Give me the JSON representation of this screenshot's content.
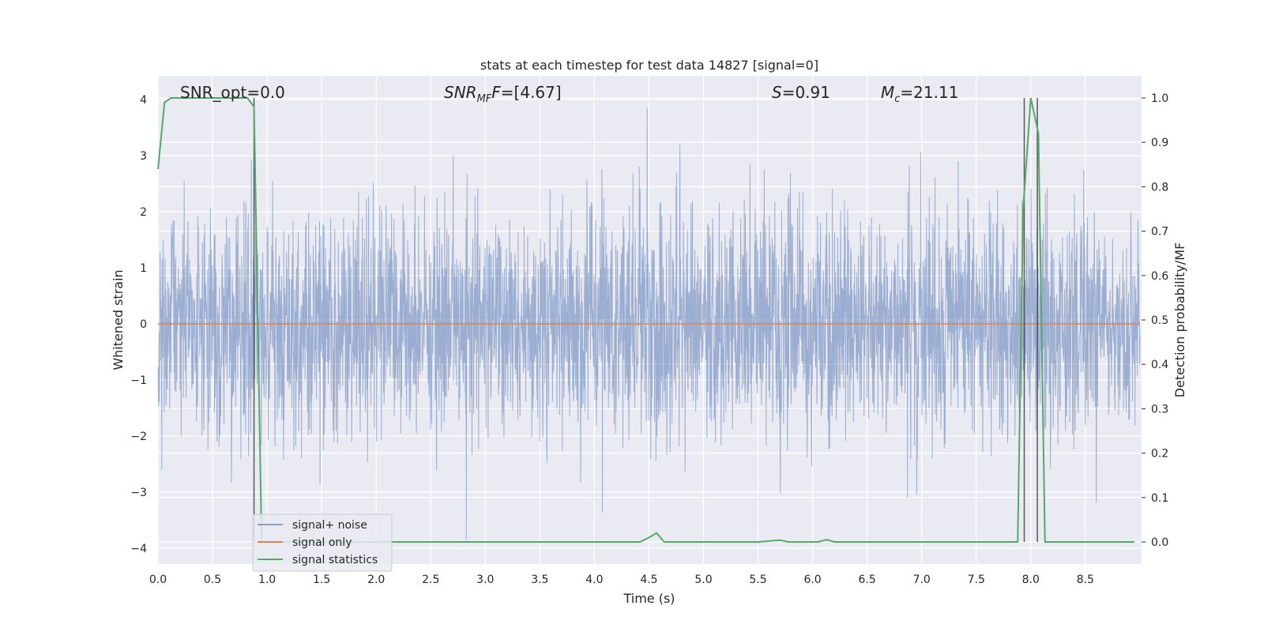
{
  "chart_data": {
    "type": "line",
    "title": "stats at each timestep for test data 14827 [signal=0]",
    "xlabel": "Time (s)",
    "ylabel": "Whitened strain",
    "y2label": "Detection probability/MF",
    "xlim": [
      0.0,
      9.0
    ],
    "ylim": [
      -4.3,
      4.35
    ],
    "y2lim": [
      -0.05,
      1.05
    ],
    "x_ticks": [
      "0.0",
      "0.5",
      "1.0",
      "1.5",
      "2.0",
      "2.5",
      "3.0",
      "3.5",
      "4.0",
      "4.5",
      "5.0",
      "5.5",
      "6.0",
      "6.5",
      "7.0",
      "7.5",
      "8.0",
      "8.5"
    ],
    "y_ticks": [
      "4",
      "3",
      "2",
      "1",
      "0",
      "−1",
      "−2",
      "−3",
      "−4"
    ],
    "y2_ticks": [
      "1.0",
      "0.9",
      "0.8",
      "0.7",
      "0.6",
      "0.5",
      "0.4",
      "0.3",
      "0.2",
      "0.1",
      "0.0"
    ],
    "grid": true,
    "legend_position": "lower-left",
    "colors": {
      "noise": "#4c72b0",
      "signal": "#dd8452",
      "stats": "#55a868",
      "vline": "#333333",
      "background": "#eaeaf2"
    },
    "annotations": {
      "snr_opt": "SNR_opt=0.0",
      "snr_mf_main": "SNR",
      "snr_mf_sub": "MF",
      "snr_mf_rest": "=[4.67]",
      "s_main": "S",
      "s_rest": "=0.91",
      "mc_main": "M",
      "mc_sub": "c",
      "mc_rest": "=21.11"
    },
    "series": [
      {
        "name": "signal+ noise",
        "kind": "noise",
        "duration": 9.0,
        "std": 1.0
      },
      {
        "name": "signal only",
        "kind": "flat",
        "values": [
          [
            0.0,
            0.0
          ],
          [
            9.0,
            0.0
          ]
        ]
      },
      {
        "name": "signal statistics",
        "axis": "right",
        "points": [
          [
            0.0,
            0.84
          ],
          [
            0.06,
            0.99
          ],
          [
            0.12,
            1.0
          ],
          [
            0.5,
            1.0
          ],
          [
            0.82,
            1.0
          ],
          [
            0.88,
            0.98
          ],
          [
            0.95,
            0.0
          ],
          [
            4.42,
            0.0
          ],
          [
            4.5,
            0.01
          ],
          [
            4.57,
            0.02
          ],
          [
            4.64,
            0.0
          ],
          [
            5.5,
            0.0
          ],
          [
            5.7,
            0.004
          ],
          [
            5.78,
            0.0
          ],
          [
            6.05,
            0.0
          ],
          [
            6.13,
            0.005
          ],
          [
            6.2,
            0.0
          ],
          [
            7.88,
            0.0
          ],
          [
            7.93,
            0.75
          ],
          [
            8.0,
            1.0
          ],
          [
            8.07,
            0.92
          ],
          [
            8.13,
            0.0
          ],
          [
            8.95,
            0.0
          ]
        ]
      }
    ],
    "vlines": [
      0.88,
      7.94,
      8.06
    ]
  }
}
